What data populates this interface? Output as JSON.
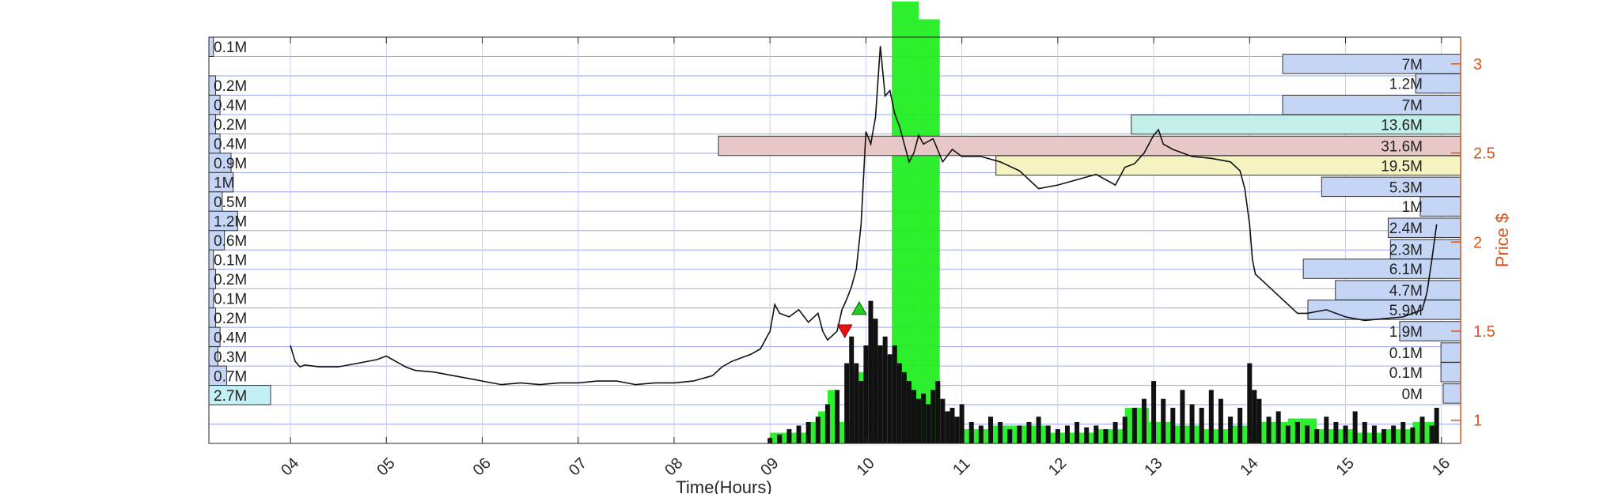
{
  "chart_data": {
    "type": "line",
    "xlabel": "Time(Hours)",
    "ylabel": "Price $",
    "xlim": [
      3.15,
      16.2
    ],
    "ylim": [
      0.87,
      3.15
    ],
    "x_ticks": [
      4,
      5,
      6,
      7,
      8,
      9,
      10,
      11,
      12,
      13,
      14,
      15,
      16
    ],
    "x_tick_labels": [
      "04",
      "05",
      "06",
      "07",
      "08",
      "09",
      "10",
      "11",
      "12",
      "13",
      "14",
      "15",
      "16"
    ],
    "y_ticks": [
      1,
      1.5,
      2,
      2.5,
      3
    ],
    "y_tick_labels": [
      "1",
      "1.5",
      "2",
      "2.5",
      "3"
    ],
    "grid": true,
    "left_volume_profile": {
      "labels": [
        "0.1M",
        "0.2M",
        "0.4M",
        "0.2M",
        "0.4M",
        "0.9M",
        "1M",
        "0.5M",
        "1.2M",
        "0.6M",
        "0.1M",
        "0.2M",
        "0.1M",
        "0.2M",
        "0.4M",
        "0.3M",
        "0.7M",
        "2.7M"
      ],
      "values": [
        0.1,
        0.2,
        0.4,
        0.2,
        0.4,
        0.9,
        1.0,
        0.5,
        1.2,
        0.6,
        0.1,
        0.2,
        0.1,
        0.2,
        0.4,
        0.3,
        0.7,
        2.7
      ]
    },
    "right_volume_profile": {
      "labels": [
        "7M",
        "1.2M",
        "7M",
        "13.6M",
        "31.6M",
        "19.5M",
        "5.3M",
        "1M",
        "2.4M",
        "2.3M",
        "6.1M",
        "4.7M",
        "5.9M",
        "1.9M",
        "0.1M",
        "0.1M",
        "0M"
      ],
      "values": [
        7,
        1.2,
        7,
        13.6,
        31.6,
        19.5,
        5.3,
        1.0,
        2.4,
        2.3,
        6.1,
        4.7,
        5.9,
        1.9,
        0.1,
        0.1,
        0.0
      ],
      "price_levels": [
        3.0,
        2.89,
        2.77,
        2.66,
        2.54,
        2.43,
        2.31,
        2.2,
        2.08,
        1.96,
        1.85,
        1.73,
        1.62,
        1.5,
        1.38,
        1.27,
        1.15
      ]
    },
    "price_series": {
      "x": [
        4.0,
        4.05,
        4.1,
        4.15,
        4.3,
        4.5,
        4.7,
        4.9,
        5.0,
        5.1,
        5.2,
        5.3,
        5.5,
        5.7,
        5.9,
        6.0,
        6.2,
        6.4,
        6.6,
        6.8,
        7.0,
        7.2,
        7.4,
        7.6,
        7.8,
        8.0,
        8.2,
        8.4,
        8.5,
        8.6,
        8.7,
        8.8,
        8.9,
        9.0,
        9.05,
        9.1,
        9.2,
        9.3,
        9.4,
        9.5,
        9.55,
        9.6,
        9.7,
        9.75,
        9.8,
        9.85,
        9.9,
        9.95,
        10.0,
        10.05,
        10.1,
        10.15,
        10.2,
        10.25,
        10.3,
        10.35,
        10.4,
        10.45,
        10.5,
        10.55,
        10.6,
        10.7,
        10.8,
        10.9,
        11.0,
        11.2,
        11.4,
        11.6,
        11.8,
        12.0,
        12.2,
        12.4,
        12.6,
        12.7,
        12.8,
        12.9,
        13.0,
        13.05,
        13.1,
        13.2,
        13.3,
        13.4,
        13.6,
        13.8,
        13.9,
        13.95,
        14.0,
        14.03,
        14.06,
        14.1,
        14.2,
        14.3,
        14.4,
        14.5,
        14.6,
        14.8,
        15.0,
        15.2,
        15.4,
        15.6,
        15.7,
        15.8,
        15.85,
        15.9,
        15.95
      ],
      "y": [
        1.42,
        1.33,
        1.3,
        1.31,
        1.3,
        1.3,
        1.32,
        1.34,
        1.36,
        1.33,
        1.3,
        1.28,
        1.27,
        1.25,
        1.23,
        1.22,
        1.2,
        1.21,
        1.2,
        1.21,
        1.21,
        1.22,
        1.22,
        1.2,
        1.21,
        1.21,
        1.22,
        1.25,
        1.3,
        1.33,
        1.35,
        1.37,
        1.4,
        1.5,
        1.65,
        1.6,
        1.58,
        1.62,
        1.55,
        1.6,
        1.5,
        1.45,
        1.5,
        1.62,
        1.68,
        1.75,
        1.85,
        2.1,
        2.62,
        2.55,
        2.7,
        3.1,
        2.82,
        2.85,
        2.72,
        2.65,
        2.55,
        2.45,
        2.5,
        2.6,
        2.55,
        2.58,
        2.45,
        2.52,
        2.48,
        2.48,
        2.45,
        2.4,
        2.3,
        2.32,
        2.35,
        2.38,
        2.32,
        2.42,
        2.44,
        2.5,
        2.6,
        2.63,
        2.55,
        2.52,
        2.5,
        2.48,
        2.47,
        2.45,
        2.4,
        2.3,
        2.1,
        1.9,
        1.82,
        1.8,
        1.75,
        1.7,
        1.65,
        1.6,
        1.6,
        1.62,
        1.58,
        1.56,
        1.57,
        1.58,
        1.6,
        1.62,
        1.72,
        1.9,
        2.1
      ]
    },
    "volume_bars": {
      "x": [
        9.0,
        9.1,
        9.2,
        9.3,
        9.4,
        9.5,
        9.6,
        9.7,
        9.8,
        9.85,
        9.9,
        9.95,
        10.0,
        10.05,
        10.1,
        10.15,
        10.2,
        10.25,
        10.3,
        10.35,
        10.4,
        10.45,
        10.5,
        10.55,
        10.6,
        10.65,
        10.7,
        10.75,
        10.8,
        10.85,
        10.9,
        10.95,
        11.0,
        11.1,
        11.2,
        11.3,
        11.4,
        11.5,
        11.6,
        11.7,
        11.8,
        11.9,
        12.0,
        12.1,
        12.2,
        12.3,
        12.4,
        12.5,
        12.6,
        12.7,
        12.8,
        12.9,
        13.0,
        13.1,
        13.2,
        13.3,
        13.4,
        13.5,
        13.6,
        13.7,
        13.8,
        13.9,
        14.0,
        14.05,
        14.1,
        14.2,
        14.3,
        14.4,
        14.5,
        14.6,
        14.7,
        14.8,
        14.9,
        15.0,
        15.1,
        15.2,
        15.3,
        15.4,
        15.5,
        15.6,
        15.7,
        15.8,
        15.9,
        15.95
      ],
      "height": [
        0.03,
        0.05,
        0.08,
        0.1,
        0.12,
        0.15,
        0.22,
        0.3,
        0.45,
        0.6,
        0.45,
        0.35,
        0.55,
        0.8,
        0.7,
        0.55,
        0.6,
        0.5,
        0.55,
        0.45,
        0.4,
        0.35,
        0.3,
        0.25,
        0.28,
        0.22,
        0.3,
        0.35,
        0.25,
        0.18,
        0.2,
        0.15,
        0.22,
        0.12,
        0.1,
        0.15,
        0.12,
        0.08,
        0.1,
        0.12,
        0.15,
        0.1,
        0.08,
        0.1,
        0.12,
        0.09,
        0.1,
        0.08,
        0.12,
        0.15,
        0.2,
        0.25,
        0.35,
        0.25,
        0.2,
        0.3,
        0.22,
        0.2,
        0.3,
        0.25,
        0.15,
        0.2,
        0.45,
        0.3,
        0.25,
        0.15,
        0.18,
        0.1,
        0.12,
        0.1,
        0.08,
        0.15,
        0.12,
        0.1,
        0.18,
        0.12,
        0.1,
        0.08,
        0.1,
        0.12,
        0.09,
        0.15,
        0.1,
        0.2
      ]
    },
    "vwap_blocks": {
      "x_start": [
        9.0,
        9.4,
        9.5,
        9.6,
        9.7,
        9.85,
        10.27,
        10.55,
        11.0,
        11.3,
        11.9,
        12.4,
        12.7,
        12.95,
        13.2,
        13.5,
        13.8,
        14.1,
        14.4,
        14.7,
        15.1,
        15.4,
        15.7
      ],
      "x_end": [
        9.4,
        9.5,
        9.6,
        9.7,
        9.85,
        10.0,
        10.55,
        10.77,
        11.3,
        11.9,
        12.4,
        12.7,
        12.95,
        13.2,
        13.5,
        13.8,
        14.1,
        14.4,
        14.7,
        15.1,
        15.4,
        15.7,
        15.95
      ],
      "level": [
        0.06,
        0.12,
        0.18,
        0.3,
        0.12,
        0.4,
        2.48,
        2.38,
        0.08,
        0.1,
        0.06,
        0.08,
        0.2,
        0.12,
        0.1,
        0.08,
        0.1,
        0.12,
        0.14,
        0.08,
        0.06,
        0.08,
        0.12
      ]
    },
    "signals": [
      {
        "type": "buy",
        "x": 9.93,
        "y": 1.62
      },
      {
        "type": "sell",
        "x": 9.78,
        "y": 1.5
      }
    ]
  }
}
